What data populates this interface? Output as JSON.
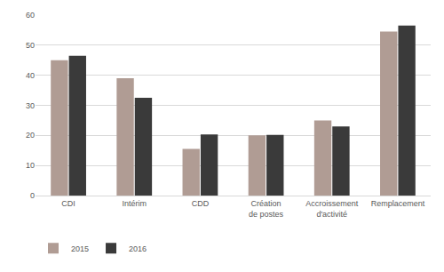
{
  "chart_data": {
    "type": "bar",
    "categories": [
      "CDI",
      "Intérim",
      "CDD",
      "Création de postes",
      "Accroissement d'activité",
      "Remplacement"
    ],
    "series": [
      {
        "name": "2015",
        "color": "#b09c94",
        "values": [
          45,
          39,
          15.5,
          20,
          25,
          54.5
        ]
      },
      {
        "name": "2016",
        "color": "#3a3a3a",
        "values": [
          46.5,
          32.5,
          20.3,
          20.2,
          23,
          56.5
        ]
      }
    ],
    "ylim": [
      0,
      60
    ],
    "yticks": [
      0,
      10,
      20,
      30,
      40,
      50,
      60
    ],
    "grid": true,
    "legend": "bottom left"
  }
}
